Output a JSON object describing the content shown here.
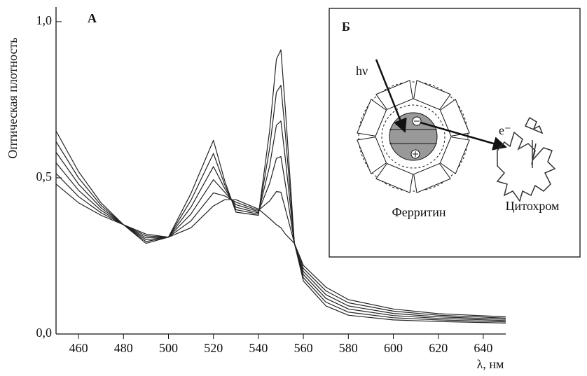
{
  "chart_data": {
    "type": "line",
    "panel_label": "А",
    "ylabel": "Оптическая плотность",
    "xlabel": "λ, нм",
    "x": [
      450,
      460,
      470,
      480,
      490,
      500,
      510,
      520,
      525,
      530,
      540,
      545,
      548,
      550,
      552,
      556,
      560,
      570,
      580,
      600,
      620,
      650
    ],
    "series": [
      {
        "color": "#222222",
        "values": [
          0.48,
          0.42,
          0.38,
          0.35,
          0.32,
          0.31,
          0.34,
          0.41,
          0.43,
          0.43,
          0.4,
          0.37,
          0.35,
          0.34,
          0.32,
          0.29,
          0.22,
          0.15,
          0.11,
          0.08,
          0.065,
          0.055
        ]
      },
      {
        "color": "#222222",
        "values": [
          0.514,
          0.44,
          0.388,
          0.35,
          0.314,
          0.31,
          0.362,
          0.452,
          0.442,
          0.422,
          0.396,
          0.426,
          0.456,
          0.454,
          0.4,
          0.29,
          0.21,
          0.138,
          0.1,
          0.073,
          0.06,
          0.051
        ]
      },
      {
        "color": "#222222",
        "values": [
          0.548,
          0.46,
          0.396,
          0.35,
          0.308,
          0.31,
          0.384,
          0.494,
          0.454,
          0.414,
          0.392,
          0.482,
          0.562,
          0.568,
          0.48,
          0.29,
          0.2,
          0.126,
          0.09,
          0.066,
          0.055,
          0.047
        ]
      },
      {
        "color": "#222222",
        "values": [
          0.582,
          0.48,
          0.404,
          0.35,
          0.302,
          0.31,
          0.406,
          0.536,
          0.466,
          0.406,
          0.388,
          0.538,
          0.668,
          0.682,
          0.56,
          0.29,
          0.19,
          0.114,
          0.08,
          0.059,
          0.05,
          0.043
        ]
      },
      {
        "color": "#222222",
        "values": [
          0.616,
          0.5,
          0.412,
          0.35,
          0.296,
          0.31,
          0.428,
          0.578,
          0.478,
          0.398,
          0.384,
          0.594,
          0.774,
          0.796,
          0.64,
          0.29,
          0.18,
          0.102,
          0.07,
          0.052,
          0.045,
          0.039
        ]
      },
      {
        "color": "#222222",
        "values": [
          0.65,
          0.52,
          0.42,
          0.35,
          0.29,
          0.31,
          0.45,
          0.62,
          0.49,
          0.39,
          0.38,
          0.65,
          0.88,
          0.91,
          0.72,
          0.29,
          0.17,
          0.09,
          0.06,
          0.045,
          0.04,
          0.035
        ]
      }
    ],
    "xlim": [
      450,
      650
    ],
    "xticks": [
      460,
      480,
      500,
      520,
      540,
      560,
      580,
      600,
      620,
      640
    ],
    "ylim": [
      0,
      1.02
    ],
    "yticks": [
      {
        "value": 0,
        "label": "0,0"
      },
      {
        "value": 0.5,
        "label": "0,5"
      },
      {
        "value": 1,
        "label": "1,0"
      }
    ]
  },
  "inset": {
    "label": "Б",
    "photon": "hν",
    "electron": "e⁻",
    "ferritin": "Ферритин",
    "cytochrome": "Цитохром"
  }
}
